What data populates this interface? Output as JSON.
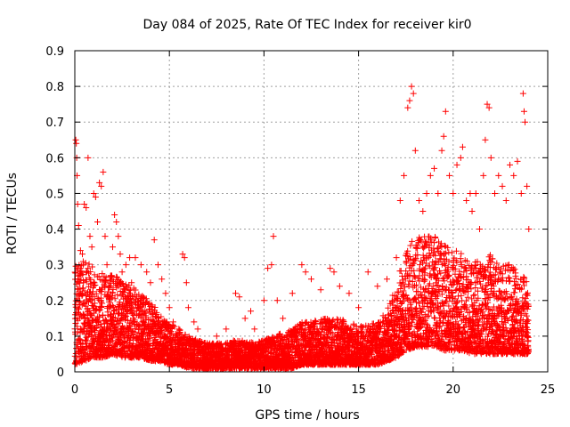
{
  "chart_data": {
    "type": "scatter",
    "title": "Day 084 of 2025, Rate Of TEC Index for receiver kir0",
    "xlabel": "GPS time / hours",
    "ylabel": "ROTI / TECUs",
    "xlim": [
      0,
      25
    ],
    "ylim": [
      0,
      0.9
    ],
    "x_ticks": [
      "0",
      "5",
      "10",
      "15",
      "20",
      "25"
    ],
    "y_ticks": [
      "0",
      "0.1",
      "0.2",
      "0.3",
      "0.4",
      "0.5",
      "0.6",
      "0.7",
      "0.8",
      "0.9"
    ],
    "marker": "plus",
    "color": "#ff0000",
    "grid": true,
    "series": [
      {
        "name": "ROTI",
        "points": [
          [
            0.05,
            0.65
          ],
          [
            0.08,
            0.64
          ],
          [
            0.1,
            0.6
          ],
          [
            0.12,
            0.55
          ],
          [
            0.15,
            0.47
          ],
          [
            0.2,
            0.41
          ],
          [
            0.3,
            0.34
          ],
          [
            0.4,
            0.33
          ],
          [
            0.5,
            0.47
          ],
          [
            0.6,
            0.46
          ],
          [
            0.7,
            0.6
          ],
          [
            0.8,
            0.38
          ],
          [
            0.9,
            0.35
          ],
          [
            1.0,
            0.5
          ],
          [
            1.1,
            0.49
          ],
          [
            1.2,
            0.42
          ],
          [
            1.3,
            0.53
          ],
          [
            1.4,
            0.52
          ],
          [
            1.5,
            0.56
          ],
          [
            1.6,
            0.38
          ],
          [
            1.7,
            0.3
          ],
          [
            1.9,
            0.27
          ],
          [
            2.0,
            0.35
          ],
          [
            2.1,
            0.44
          ],
          [
            2.2,
            0.42
          ],
          [
            2.3,
            0.38
          ],
          [
            2.4,
            0.33
          ],
          [
            2.5,
            0.28
          ],
          [
            2.7,
            0.3
          ],
          [
            2.9,
            0.32
          ],
          [
            3.0,
            0.25
          ],
          [
            3.2,
            0.32
          ],
          [
            3.5,
            0.3
          ],
          [
            3.8,
            0.28
          ],
          [
            4.0,
            0.25
          ],
          [
            4.2,
            0.37
          ],
          [
            4.4,
            0.3
          ],
          [
            4.6,
            0.26
          ],
          [
            4.8,
            0.22
          ],
          [
            5.0,
            0.18
          ],
          [
            5.2,
            0.14
          ],
          [
            5.5,
            0.12
          ],
          [
            5.7,
            0.33
          ],
          [
            5.8,
            0.32
          ],
          [
            5.9,
            0.25
          ],
          [
            6.0,
            0.18
          ],
          [
            6.3,
            0.14
          ],
          [
            6.5,
            0.12
          ],
          [
            7.0,
            0.08
          ],
          [
            7.5,
            0.1
          ],
          [
            8.0,
            0.12
          ],
          [
            8.5,
            0.22
          ],
          [
            8.7,
            0.21
          ],
          [
            9.0,
            0.15
          ],
          [
            9.3,
            0.17
          ],
          [
            9.5,
            0.12
          ],
          [
            10.0,
            0.2
          ],
          [
            10.2,
            0.29
          ],
          [
            10.4,
            0.3
          ],
          [
            10.5,
            0.38
          ],
          [
            10.7,
            0.2
          ],
          [
            11.0,
            0.15
          ],
          [
            11.5,
            0.22
          ],
          [
            12.0,
            0.3
          ],
          [
            12.2,
            0.28
          ],
          [
            12.5,
            0.26
          ],
          [
            13.0,
            0.23
          ],
          [
            13.5,
            0.29
          ],
          [
            13.7,
            0.28
          ],
          [
            14.0,
            0.24
          ],
          [
            14.5,
            0.22
          ],
          [
            15.0,
            0.18
          ],
          [
            15.5,
            0.28
          ],
          [
            16.0,
            0.24
          ],
          [
            16.5,
            0.26
          ],
          [
            17.0,
            0.32
          ],
          [
            17.2,
            0.48
          ],
          [
            17.4,
            0.55
          ],
          [
            17.6,
            0.74
          ],
          [
            17.7,
            0.76
          ],
          [
            17.8,
            0.8
          ],
          [
            17.9,
            0.78
          ],
          [
            18.0,
            0.62
          ],
          [
            18.2,
            0.48
          ],
          [
            18.4,
            0.45
          ],
          [
            18.6,
            0.5
          ],
          [
            18.8,
            0.55
          ],
          [
            19.0,
            0.57
          ],
          [
            19.2,
            0.5
          ],
          [
            19.4,
            0.62
          ],
          [
            19.5,
            0.66
          ],
          [
            19.6,
            0.73
          ],
          [
            19.8,
            0.55
          ],
          [
            20.0,
            0.5
          ],
          [
            20.2,
            0.58
          ],
          [
            20.4,
            0.6
          ],
          [
            20.5,
            0.63
          ],
          [
            20.7,
            0.48
          ],
          [
            20.9,
            0.5
          ],
          [
            21.0,
            0.45
          ],
          [
            21.2,
            0.5
          ],
          [
            21.4,
            0.4
          ],
          [
            21.6,
            0.55
          ],
          [
            21.7,
            0.65
          ],
          [
            21.8,
            0.75
          ],
          [
            21.9,
            0.74
          ],
          [
            22.0,
            0.6
          ],
          [
            22.2,
            0.5
          ],
          [
            22.4,
            0.55
          ],
          [
            22.6,
            0.52
          ],
          [
            22.8,
            0.48
          ],
          [
            23.0,
            0.58
          ],
          [
            23.2,
            0.55
          ],
          [
            23.4,
            0.59
          ],
          [
            23.6,
            0.5
          ],
          [
            23.7,
            0.78
          ],
          [
            23.75,
            0.73
          ],
          [
            23.8,
            0.7
          ],
          [
            23.9,
            0.52
          ],
          [
            24.0,
            0.4
          ]
        ]
      }
    ],
    "density_profile": {
      "x": [
        0,
        0.5,
        1,
        1.5,
        2,
        2.5,
        3,
        3.5,
        4,
        4.5,
        5,
        5.5,
        6,
        6.5,
        7,
        7.5,
        8,
        8.5,
        9,
        9.5,
        10,
        10.5,
        11,
        11.5,
        12,
        12.5,
        13,
        13.5,
        14,
        14.5,
        15,
        15.5,
        16,
        16.5,
        17,
        17.5,
        18,
        18.5,
        19,
        19.5,
        20,
        20.5,
        21,
        21.5,
        22,
        22.5,
        23,
        23.5,
        24
      ],
      "upper": [
        0.3,
        0.32,
        0.3,
        0.28,
        0.27,
        0.26,
        0.24,
        0.22,
        0.2,
        0.16,
        0.14,
        0.12,
        0.1,
        0.09,
        0.08,
        0.08,
        0.08,
        0.09,
        0.09,
        0.08,
        0.09,
        0.1,
        0.11,
        0.12,
        0.14,
        0.14,
        0.15,
        0.15,
        0.15,
        0.14,
        0.13,
        0.13,
        0.14,
        0.17,
        0.25,
        0.35,
        0.38,
        0.38,
        0.38,
        0.36,
        0.35,
        0.33,
        0.32,
        0.3,
        0.33,
        0.3,
        0.3,
        0.28,
        0.25
      ],
      "lower": [
        0.02,
        0.03,
        0.04,
        0.04,
        0.05,
        0.04,
        0.04,
        0.04,
        0.03,
        0.03,
        0.02,
        0.02,
        0.01,
        0.01,
        0.01,
        0.01,
        0.01,
        0.01,
        0.01,
        0.01,
        0.01,
        0.01,
        0.01,
        0.01,
        0.02,
        0.02,
        0.02,
        0.02,
        0.02,
        0.02,
        0.02,
        0.02,
        0.02,
        0.03,
        0.04,
        0.06,
        0.07,
        0.07,
        0.07,
        0.06,
        0.06,
        0.06,
        0.05,
        0.05,
        0.05,
        0.05,
        0.05,
        0.05,
        0.05
      ]
    }
  }
}
